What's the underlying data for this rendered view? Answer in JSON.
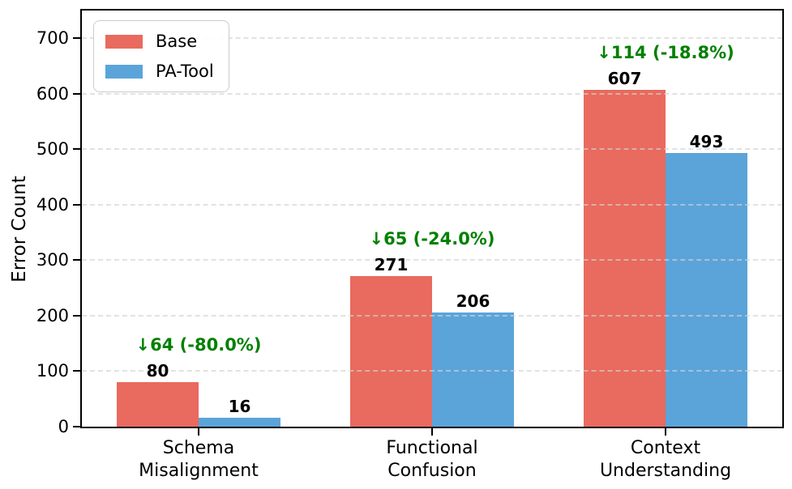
{
  "chart_data": {
    "type": "bar",
    "title": "",
    "xlabel": "",
    "ylabel": "Error Count",
    "ylim": [
      0,
      750
    ],
    "yticks": [
      0,
      100,
      200,
      300,
      400,
      500,
      600,
      700
    ],
    "grid": "dashed-horizontal",
    "legend_position": "top-left",
    "categories": [
      "Schema\nMisalignment",
      "Functional\nConfusion",
      "Context\nUnderstanding"
    ],
    "series": [
      {
        "name": "Base",
        "color": "#e96a5e",
        "values": [
          80,
          271,
          607
        ]
      },
      {
        "name": "PA-Tool",
        "color": "#5ba4d9",
        "values": [
          16,
          206,
          493
        ]
      }
    ],
    "annotations": [
      {
        "text": "↓64 (-80.0%)"
      },
      {
        "text": "↓65 (-24.0%)"
      },
      {
        "text": "↓114 (-18.8%)"
      }
    ],
    "annotation_color": "#008000",
    "text_color": "#000000"
  }
}
